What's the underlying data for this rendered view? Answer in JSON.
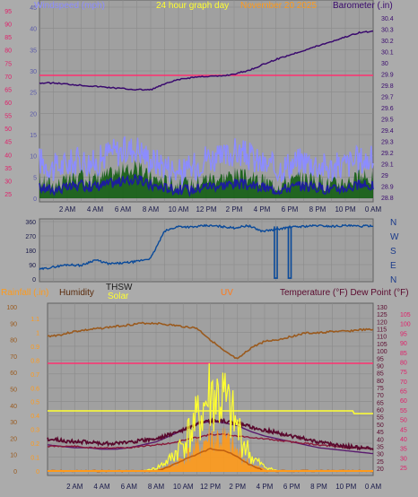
{
  "panels": {
    "top": {
      "header": {
        "left_label": "Windspeed (mph)",
        "center_label": "24 hour graph day",
        "date_text": "November 20 2025",
        "right_label": "Barometer (.in)"
      },
      "left_axis_ticks": [
        "45",
        "40",
        "35",
        "30",
        "25",
        "20",
        "15",
        "10",
        "5",
        "0"
      ],
      "outer_left_ticks": [
        "95",
        "90",
        "85",
        "80",
        "75",
        "70",
        "65",
        "60",
        "55",
        "50",
        "45",
        "40",
        "35",
        "30",
        "25"
      ],
      "right_axis_ticks": [
        "30.4",
        "30.3",
        "30.2",
        "30.1",
        "30",
        "29.9",
        "29.8",
        "29.7",
        "29.6",
        "29.5",
        "29.4",
        "29.3",
        "29.2",
        "29.1",
        "29",
        "28.9",
        "28.8"
      ]
    },
    "middle": {
      "axis_ticks": [
        "360",
        "270",
        "180",
        "90",
        "0"
      ],
      "compass": [
        "N",
        "W",
        "S",
        "E",
        "N"
      ]
    },
    "bottom": {
      "header": {
        "rainfall_label": "Rainfall (.in)",
        "humidity_label": "Humidity",
        "thsw_label": "THSW",
        "solar_label": "Solar",
        "uv_label": "UV",
        "temp_label": "Temperature (°F) Dew Point (°F)"
      },
      "humidity_ticks": [
        "100",
        "90",
        "80",
        "70",
        "60",
        "50",
        "40",
        "30",
        "20",
        "10",
        "0"
      ],
      "rain_ticks": [
        "1.1",
        "1",
        "0.9",
        "0.8",
        "0.7",
        "0.6",
        "0.5",
        "0.4",
        "0.3",
        "0.2",
        "0.1",
        "0"
      ],
      "temp_ticks": [
        "130",
        "125",
        "120",
        "115",
        "110",
        "105",
        "100",
        "95",
        "90",
        "85",
        "80",
        "75",
        "70",
        "65",
        "60",
        "55",
        "50",
        "45",
        "40",
        "35",
        "30",
        "25",
        "20"
      ],
      "outer_right_ticks": [
        "105",
        "100",
        "95",
        "90",
        "85",
        "80",
        "75",
        "70",
        "65",
        "60",
        "55",
        "50",
        "45",
        "40",
        "35",
        "30",
        "25"
      ]
    },
    "time_labels": [
      "2 AM",
      "4 AM",
      "6 AM",
      "8 AM",
      "10 AM",
      "12 PM",
      "2 PM",
      "4 PM",
      "6 PM",
      "8 PM",
      "10 PM",
      "0 AM"
    ]
  },
  "colors": {
    "background": "#ababab",
    "plot": "#a0a0a0",
    "grid": "#8a8a8a",
    "barometer": "#3a0a6e",
    "wind_gust": "#8c8cff",
    "wind_avg": "#1c1c9e",
    "wind_fill": "#0a5a0a",
    "direction": "#0a4a9a",
    "humidity": "#9a5a1e",
    "temperature": "#5a0a2e",
    "dew_point": "#8a1a3a",
    "thsw": "#5a1a6e",
    "solar": "#ffff30",
    "solar_fill": "#ff9a1a",
    "uv": "#c06010",
    "rain": "#ff3060",
    "pink_ref": "#ff3070"
  },
  "chart_data": [
    {
      "type": "line",
      "name": "wind_barometer",
      "x": [
        0,
        1,
        2,
        3,
        4,
        5,
        6,
        7,
        8,
        9,
        10,
        11,
        12,
        13,
        14,
        15,
        16,
        17,
        18,
        19,
        20,
        21,
        22,
        23,
        24
      ],
      "series": [
        {
          "name": "Barometer",
          "axis": "right",
          "values": [
            29.82,
            29.82,
            29.81,
            29.8,
            29.79,
            29.78,
            29.77,
            29.76,
            29.76,
            29.81,
            29.85,
            29.87,
            29.88,
            29.88,
            29.9,
            29.93,
            29.98,
            30.03,
            30.07,
            30.11,
            30.15,
            30.19,
            30.23,
            30.27,
            30.28
          ]
        },
        {
          "name": "Wind gust",
          "axis": "left",
          "values": [
            9,
            7,
            8,
            9,
            8,
            11,
            11,
            12,
            9,
            8,
            6,
            7,
            10,
            9,
            11,
            10,
            8,
            7,
            8,
            9,
            8,
            7,
            8,
            9,
            9
          ]
        },
        {
          "name": "Wind average",
          "axis": "left",
          "values": [
            2.5,
            2,
            2.5,
            3,
            2.8,
            3.5,
            4,
            4.5,
            3,
            2.5,
            2,
            2,
            3,
            3,
            3.5,
            3,
            2.5,
            2,
            2.5,
            3,
            2.5,
            2,
            2.5,
            3,
            3
          ]
        }
      ],
      "left_ylim": [
        0,
        45
      ],
      "right_ylim": [
        28.8,
        30.4
      ]
    },
    {
      "type": "line",
      "name": "wind_direction",
      "x": [
        0,
        1,
        2,
        3,
        4,
        5,
        6,
        7,
        8,
        9,
        10,
        11,
        12,
        13,
        14,
        15,
        16,
        17,
        18,
        19,
        20,
        21,
        22,
        23,
        24
      ],
      "series": [
        {
          "name": "Direction",
          "values": [
            60,
            75,
            90,
            85,
            120,
            95,
            100,
            110,
            130,
            300,
            330,
            325,
            335,
            330,
            320,
            335,
            300,
            310,
            325,
            330,
            335,
            330,
            335,
            330,
            335
          ]
        }
      ],
      "ylim": [
        0,
        360
      ]
    },
    {
      "type": "line",
      "name": "temperature_humidity_solar",
      "x": [
        0,
        1,
        2,
        3,
        4,
        5,
        6,
        7,
        8,
        9,
        10,
        11,
        12,
        13,
        14,
        15,
        16,
        17,
        18,
        19,
        20,
        21,
        22,
        23,
        24
      ],
      "series": [
        {
          "name": "Humidity",
          "axis": "left",
          "values": [
            82,
            83,
            85,
            86,
            87,
            88,
            89,
            90,
            90,
            89,
            88,
            87,
            80,
            73,
            68,
            75,
            79,
            80,
            82,
            84,
            84,
            85,
            85,
            86,
            86
          ]
        },
        {
          "name": "Temperature",
          "axis": "right",
          "values": [
            40,
            39,
            38,
            38,
            37,
            37,
            38,
            39,
            40,
            43,
            46,
            50,
            52,
            52,
            51,
            48,
            46,
            44,
            42,
            40,
            38,
            36,
            35,
            34,
            33
          ]
        },
        {
          "name": "Dew Point",
          "axis": "right",
          "values": [
            35,
            35,
            35,
            34,
            34,
            34,
            34,
            35,
            36,
            37,
            39,
            41,
            43,
            43,
            42,
            41,
            40,
            39,
            38,
            37,
            36,
            35,
            34,
            34,
            33
          ]
        },
        {
          "name": "THSW",
          "axis": "right",
          "values": [
            36,
            35,
            34,
            34,
            33,
            33,
            34,
            36,
            38,
            42,
            46,
            50,
            52,
            51,
            49,
            45,
            42,
            40,
            38,
            36,
            34,
            33,
            32,
            31,
            30
          ]
        },
        {
          "name": "Solar",
          "axis": "rain",
          "values": [
            0,
            0,
            0,
            0,
            0,
            0,
            0,
            0,
            0.02,
            0.08,
            0.2,
            0.35,
            0.55,
            0.5,
            0.3,
            0.1,
            0.03,
            0,
            0,
            0,
            0,
            0,
            0,
            0,
            0
          ]
        },
        {
          "name": "UV",
          "axis": "rain",
          "values": [
            0,
            0,
            0,
            0,
            0,
            0,
            0,
            0,
            0,
            0.03,
            0.08,
            0.12,
            0.16,
            0.15,
            0.1,
            0.04,
            0,
            0,
            0,
            0,
            0,
            0,
            0,
            0,
            0
          ]
        },
        {
          "name": "Rainfall",
          "axis": "rain",
          "values": [
            0,
            0,
            0,
            0,
            0,
            0,
            0,
            0,
            0,
            0,
            0,
            0,
            0,
            0,
            0,
            0,
            0,
            0,
            0,
            0,
            0,
            0,
            0,
            0,
            0
          ]
        }
      ],
      "left_ylim": [
        0,
        100
      ],
      "rain_ylim": [
        0,
        1.1
      ],
      "right_ylim": [
        20,
        130
      ]
    }
  ]
}
